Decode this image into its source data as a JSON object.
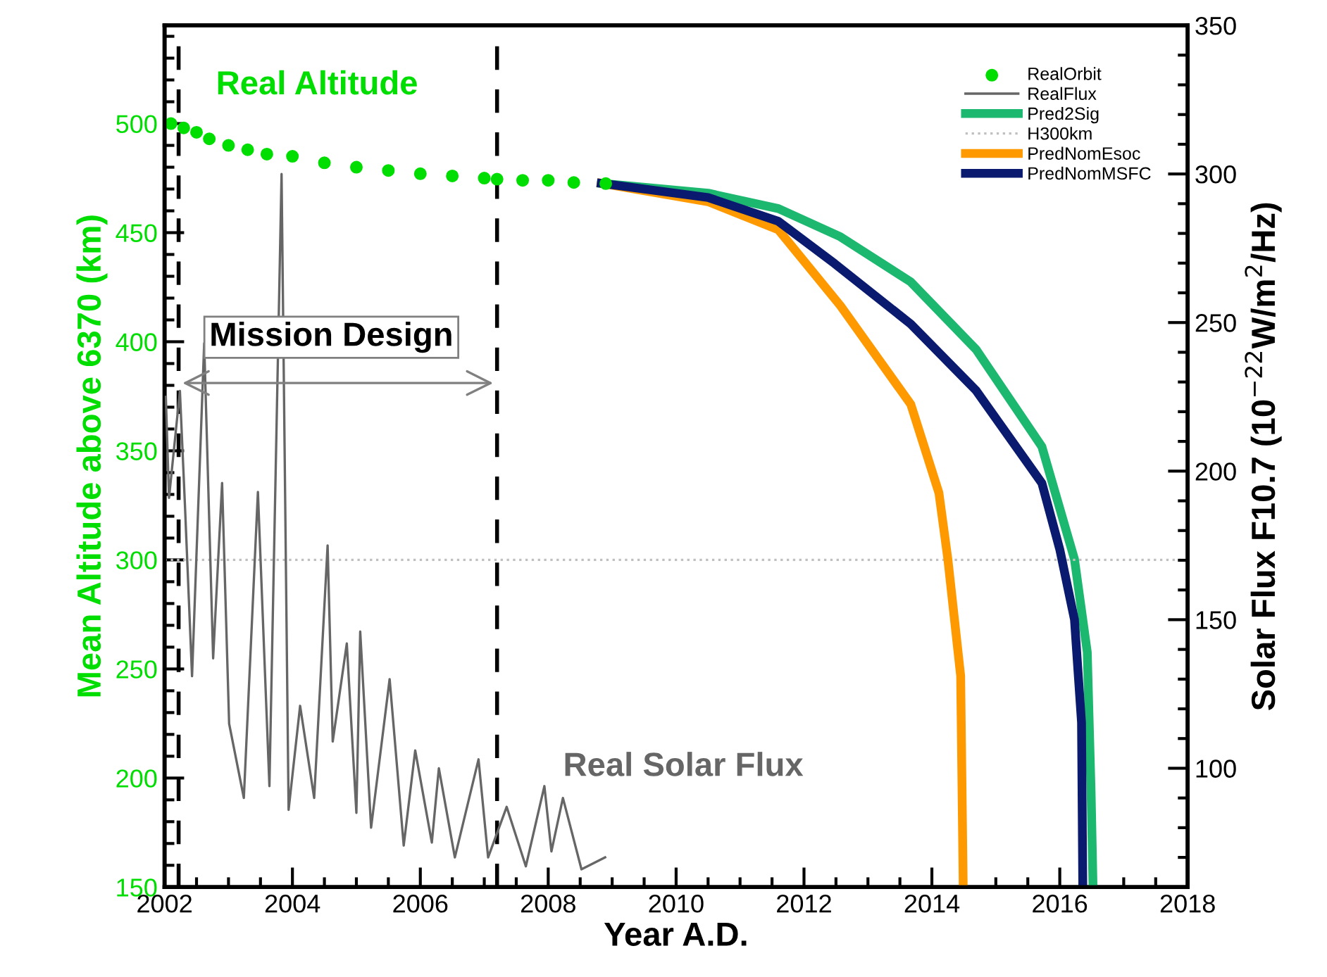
{
  "chart_data": {
    "type": "line",
    "xlabel": "Year A.D.",
    "ylabel": "Mean Altitude above 6370 (km)",
    "y2label": "Solar Flux F10.7 (10$^{−22}$W/m$^{2}$/Hz)",
    "xlim": [
      2002,
      2018
    ],
    "xticks": [
      2002,
      {
        "value": 2002.5,
        "label": null
      },
      {
        "value": 2003,
        "label": null
      },
      {
        "value": 2003.5,
        "label": null
      },
      2004,
      {
        "value": 2004.5,
        "label": null
      },
      {
        "value": 2005,
        "label": null
      },
      {
        "value": 2005.5,
        "label": null
      },
      2006,
      {
        "value": 2006.5,
        "label": null
      },
      {
        "value": 2007,
        "label": null
      },
      {
        "value": 2007.5,
        "label": null
      },
      2008,
      {
        "value": 2008.5,
        "label": null
      },
      {
        "value": 2009,
        "label": null
      },
      {
        "value": 2009.5,
        "label": null
      },
      2010,
      {
        "value": 2010.5,
        "label": null
      },
      {
        "value": 2011,
        "label": null
      },
      {
        "value": 2011.5,
        "label": null
      },
      2012,
      {
        "value": 2012.5,
        "label": null
      },
      {
        "value": 2013,
        "label": null
      },
      {
        "value": 2013.5,
        "label": null
      },
      2014,
      {
        "value": 2014.5,
        "label": null
      },
      {
        "value": 2015,
        "label": null
      },
      {
        "value": 2015.5,
        "label": null
      },
      2016,
      {
        "value": 2016.5,
        "label": null
      },
      {
        "value": 2017,
        "label": null
      },
      {
        "value": 2017.5,
        "label": null
      },
      2018
    ],
    "ylim": [
      150,
      545
    ],
    "yticks": [
      150,
      {
        "value": 160,
        "label": null
      },
      {
        "value": 170,
        "label": null
      },
      {
        "value": 180,
        "label": null
      },
      {
        "value": 190,
        "label": null
      },
      200,
      {
        "value": 210,
        "label": null
      },
      {
        "value": 220,
        "label": null
      },
      {
        "value": 230,
        "label": null
      },
      {
        "value": 240,
        "label": null
      },
      250,
      {
        "value": 260,
        "label": null
      },
      {
        "value": 270,
        "label": null
      },
      {
        "value": 280,
        "label": null
      },
      {
        "value": 290,
        "label": null
      },
      300,
      {
        "value": 310,
        "label": null
      },
      {
        "value": 320,
        "label": null
      },
      {
        "value": 330,
        "label": null
      },
      {
        "value": 340,
        "label": null
      },
      350,
      {
        "value": 360,
        "label": null
      },
      {
        "value": 370,
        "label": null
      },
      {
        "value": 380,
        "label": null
      },
      {
        "value": 390,
        "label": null
      },
      400,
      {
        "value": 410,
        "label": null
      },
      {
        "value": 420,
        "label": null
      },
      {
        "value": 430,
        "label": null
      },
      {
        "value": 440,
        "label": null
      },
      450,
      {
        "value": 460,
        "label": null
      },
      {
        "value": 470,
        "label": null
      },
      {
        "value": 480,
        "label": null
      },
      {
        "value": 490,
        "label": null
      },
      500,
      {
        "value": 510,
        "label": null
      },
      {
        "value": 520,
        "label": null
      },
      {
        "value": 530,
        "label": null
      },
      {
        "value": 540,
        "label": null
      }
    ],
    "y2lim": [
      60,
      350
    ],
    "y2ticks": [
      {
        "value": 70,
        "label": null
      },
      {
        "value": 80,
        "label": null
      },
      {
        "value": 90,
        "label": null
      },
      100,
      {
        "value": 110,
        "label": null
      },
      {
        "value": 120,
        "label": null
      },
      {
        "value": 130,
        "label": null
      },
      {
        "value": 140,
        "label": null
      },
      150,
      {
        "value": 160,
        "label": null
      },
      {
        "value": 170,
        "label": null
      },
      {
        "value": 180,
        "label": null
      },
      {
        "value": 190,
        "label": null
      },
      200,
      {
        "value": 210,
        "label": null
      },
      {
        "value": 220,
        "label": null
      },
      {
        "value": 230,
        "label": null
      },
      {
        "value": 240,
        "label": null
      },
      250,
      {
        "value": 260,
        "label": null
      },
      {
        "value": 270,
        "label": null
      },
      {
        "value": 280,
        "label": null
      },
      {
        "value": 290,
        "label": null
      },
      300,
      {
        "value": 310,
        "label": null
      },
      {
        "value": 320,
        "label": null
      },
      {
        "value": 330,
        "label": null
      },
      {
        "value": 340,
        "label": null
      },
      350
    ],
    "legend": "top right",
    "ref_lines": [
      {
        "axis": "x",
        "value": 2002.22,
        "color": "#000000",
        "line_style": "dashed"
      },
      {
        "axis": "x",
        "value": 2007.2,
        "color": "#000000",
        "line_style": "dashed"
      }
    ],
    "annotations": [
      "Real Altitude",
      "Mission Design",
      "Real Solar Flux"
    ],
    "series": [
      {
        "name": "RealOrbit",
        "type": "scatter",
        "marker": "circle",
        "color": "#00dd00",
        "x": [
          2002.1,
          2002.3,
          2002.5,
          2002.7,
          2003.0,
          2003.3,
          2003.6,
          2004.0,
          2004.5,
          2005.0,
          2005.5,
          2006.0,
          2006.5,
          2007.0,
          2007.2,
          2007.6,
          2008.0,
          2008.4,
          2008.9
        ],
        "values": [
          500,
          498,
          496,
          493,
          490,
          488,
          486,
          485,
          482,
          480,
          478.5,
          477,
          476,
          475,
          474.5,
          474,
          474,
          473,
          472.5
        ]
      },
      {
        "name": "RealFlux",
        "axis": "y2",
        "line_style": "solid",
        "color": "#666666",
        "x": [
          2002.02,
          2002.07,
          2002.24,
          2002.32,
          2002.43,
          2002.62,
          2002.76,
          2002.9,
          2003.01,
          2003.24,
          2003.46,
          2003.64,
          2003.83,
          2003.94,
          2004.12,
          2004.34,
          2004.55,
          2004.63,
          2004.85,
          2005.0,
          2005.06,
          2005.23,
          2005.52,
          2005.74,
          2005.92,
          2006.18,
          2006.29,
          2006.54,
          2006.91,
          2007.06,
          2007.35,
          2007.65,
          2007.94,
          2008.05,
          2008.23,
          2008.52,
          2008.89
        ],
        "values": [
          225,
          191,
          227,
          188,
          131,
          243,
          137,
          196,
          115,
          90,
          193,
          94,
          300,
          86,
          121,
          90,
          175,
          109,
          142,
          85,
          146,
          80,
          130,
          74,
          106,
          75,
          100,
          70,
          103,
          70,
          87,
          67,
          94,
          72,
          90,
          66,
          70
        ]
      },
      {
        "name": "Pred2Sig",
        "line_style": "solid",
        "color": "#1db870",
        "x": [
          2008.83,
          2010.5,
          2011.6,
          2012.57,
          2013.67,
          2014.69,
          2015.72,
          2016.23,
          2016.43,
          2016.49,
          2016.52
        ],
        "values": [
          472.6,
          468.1,
          461,
          448.1,
          427.4,
          396.5,
          351.9,
          300.3,
          257.7,
          193.2,
          150
        ]
      },
      {
        "name": "H300km",
        "line_style": "dotted",
        "color": "#c0c0c0",
        "x": [
          2002,
          2018
        ],
        "values": [
          300,
          300
        ]
      },
      {
        "name": "PredNomEsoc",
        "line_style": "solid",
        "color": "#ff9900",
        "x": [
          2008.83,
          2010.5,
          2011.6,
          2012.57,
          2013.67,
          2014.11,
          2014.25,
          2014.45,
          2014.49
        ],
        "values": [
          472.6,
          464.2,
          451.3,
          416.5,
          371.3,
          330.7,
          300.3,
          246.8,
          150
        ]
      },
      {
        "name": "PredNomMSFC",
        "line_style": "solid",
        "color": "#0a1a6e",
        "x": [
          2008.83,
          2010.5,
          2011.6,
          2012.48,
          2013.67,
          2014.69,
          2015.72,
          2016.0,
          2016.23,
          2016.34,
          2016.36
        ],
        "values": [
          472.6,
          466.1,
          455.2,
          435.8,
          408.1,
          377.7,
          335.2,
          304.8,
          272.6,
          225.5,
          150
        ]
      }
    ]
  }
}
